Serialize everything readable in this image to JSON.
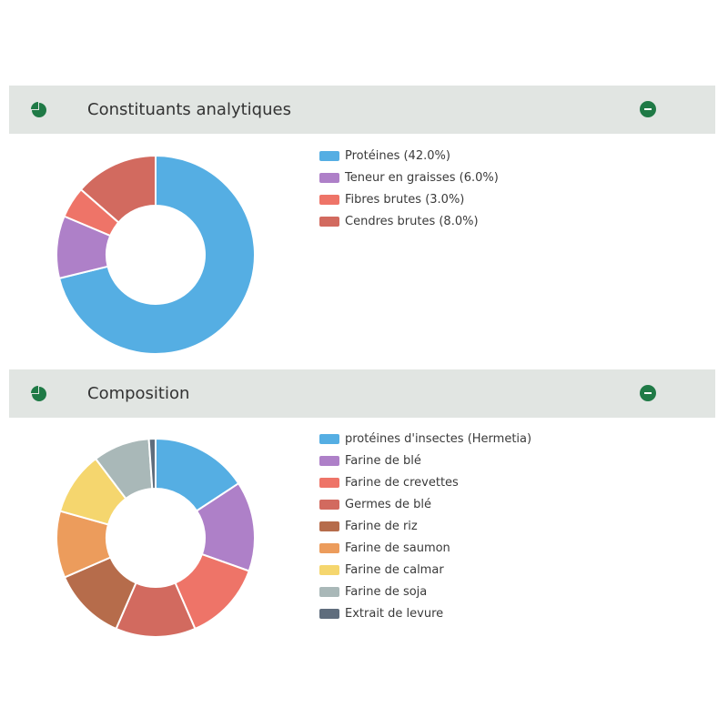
{
  "panels": [
    {
      "title": "Constituants analytiques",
      "icon": "pie-chart-icon",
      "action_icon": "minus-circle-icon"
    },
    {
      "title": "Composition",
      "icon": "pie-chart-icon",
      "action_icon": "minus-circle-icon"
    }
  ],
  "chart_data": [
    {
      "type": "pie",
      "donut": true,
      "title": "Constituants analytiques",
      "categories": [
        "Protéines (42.0%)",
        "Teneur en graisses (6.0%)",
        "Fibres brutes (3.0%)",
        "Cendres brutes (8.0%)"
      ],
      "values": [
        42.0,
        6.0,
        3.0,
        8.0
      ],
      "colors": [
        "#55aee3",
        "#ae80c8",
        "#ee7468",
        "#d26a5f"
      ],
      "legend": "right"
    },
    {
      "type": "pie",
      "donut": true,
      "title": "Composition",
      "categories": [
        "protéines d'insectes (Hermetia)",
        "Farine de blé",
        "Farine de crevettes",
        "Germes de blé",
        "Farine de riz",
        "Farine de saumon",
        "Farine de calmar",
        "Farine de soja",
        "Extrait de levure"
      ],
      "values": [
        14.5,
        13.5,
        12,
        12,
        11,
        10,
        9.5,
        8.5,
        1
      ],
      "colors": [
        "#55aee3",
        "#ae80c8",
        "#ee7468",
        "#d26a5f",
        "#b66c4b",
        "#ec9c5c",
        "#f5d66e",
        "#a9b8b8",
        "#5f6d7d"
      ],
      "legend": "right"
    }
  ]
}
